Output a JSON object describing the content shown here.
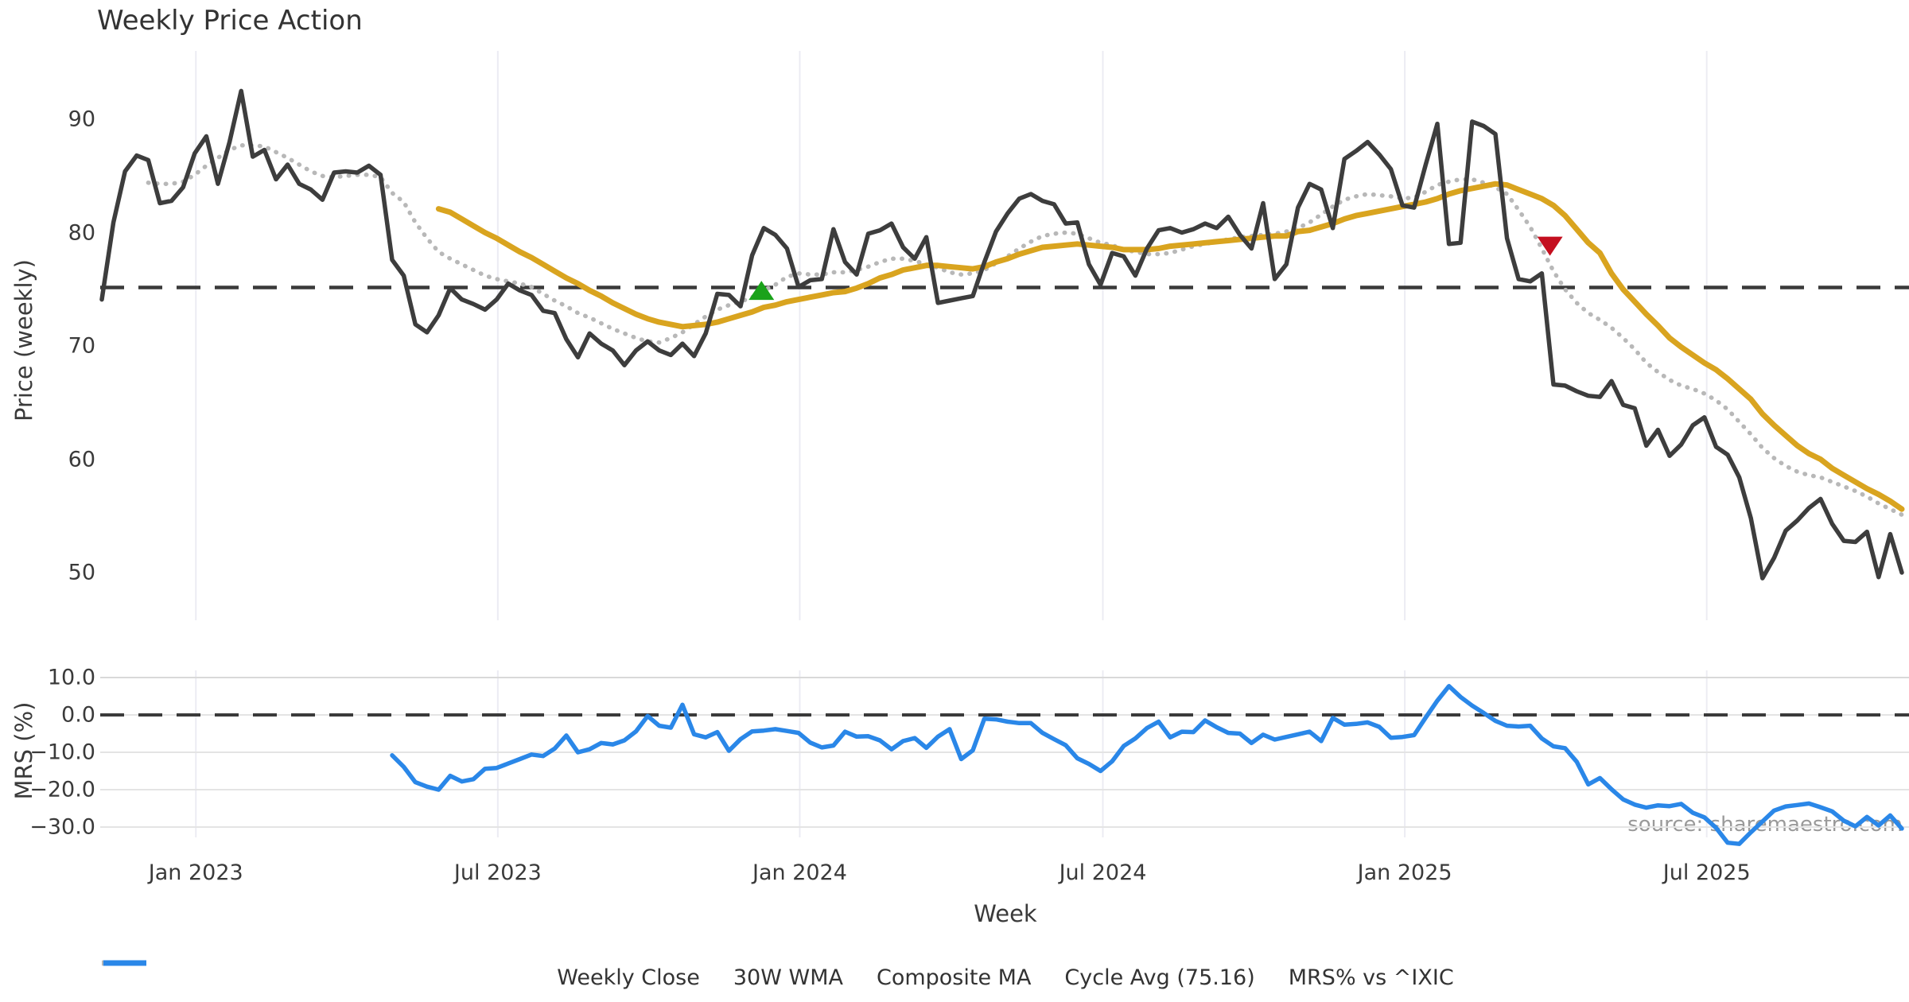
{
  "title": "Weekly Price Action",
  "source_note": "source: sharemaestro.com",
  "axes": {
    "price_label": "Price (weekly)",
    "mrs_label": "MRS (%)",
    "week_label": "Week"
  },
  "colors": {
    "close": "#3d3d3d",
    "wma": "#d9a41f",
    "composite": "#b8b8b8",
    "cycle_dash": "#3a3a3a",
    "mrs": "#2a87e8",
    "buy_marker": "#1aa21a",
    "sell_marker": "#c40f1f",
    "grid_vertical": "#ececf3",
    "grid_horizontal": "#e4e4e4",
    "text": "#3a3a3a",
    "muted_text": "#9a9a9a"
  },
  "legend": [
    {
      "label": "Weekly Close",
      "color": "#3d3d3d",
      "dash": "none"
    },
    {
      "label": "30W WMA",
      "color": "#d9a41f",
      "dash": "none"
    },
    {
      "label": "Composite MA",
      "color": "#b8b8b8",
      "dash": "dotted"
    },
    {
      "label": "Cycle Avg (75.16)",
      "color": "#3a3a3a",
      "dash": "dashed"
    },
    {
      "label": "MRS% vs ^IXIC",
      "color": "#2a87e8",
      "dash": "none"
    }
  ],
  "chart_data": [
    {
      "type": "line",
      "panel": "price",
      "title": "Weekly Price Action",
      "ylabel": "Price (weekly)",
      "xlabel": "Week",
      "ylim": [
        46,
        96.5
      ],
      "grid": "vertical-only",
      "yticks": [
        {
          "value": 90,
          "label": "90"
        },
        {
          "value": 80,
          "label": "80"
        },
        {
          "value": 70,
          "label": "70"
        },
        {
          "value": 60,
          "label": "60"
        },
        {
          "value": 50,
          "label": "50"
        }
      ],
      "x_ticks": [
        {
          "week": 8.1,
          "label": "Jan 2023"
        },
        {
          "week": 34.1,
          "label": "Jul 2023"
        },
        {
          "week": 60.1,
          "label": "Jan 2024"
        },
        {
          "week": 86.2,
          "label": "Jul 2024"
        },
        {
          "week": 112.2,
          "label": "Jan 2025"
        },
        {
          "week": 138.2,
          "label": "Jul 2025"
        }
      ],
      "cycle_avg": 75.16,
      "series": [
        {
          "name": "Weekly Close",
          "start_week": 0,
          "values": [
            74.1,
            80.9,
            85.4,
            86.8,
            86.4,
            82.6,
            82.8,
            84.0,
            87.0,
            88.5,
            84.3,
            88.0,
            92.5,
            86.7,
            87.3,
            84.7,
            86.0,
            84.3,
            83.8,
            82.9,
            85.3,
            85.4,
            85.3,
            85.9,
            85.1,
            77.6,
            76.2,
            71.9,
            71.2,
            72.7,
            75.1,
            74.1,
            73.7,
            73.2,
            74.1,
            75.5,
            74.9,
            74.5,
            73.1,
            72.9,
            70.6,
            69.0,
            71.1,
            70.2,
            69.6,
            68.3,
            69.6,
            70.4,
            69.6,
            69.2,
            70.2,
            69.1,
            71.1,
            74.6,
            74.5,
            73.5,
            78.0,
            80.4,
            79.8,
            78.6,
            75.2,
            75.8,
            75.9,
            80.3,
            77.4,
            76.3,
            79.9,
            80.2,
            80.8,
            78.7,
            77.7,
            79.6,
            73.8,
            74.0,
            74.2,
            74.4,
            77.4,
            80.1,
            81.7,
            83.0,
            83.4,
            82.8,
            82.5,
            80.8,
            80.9,
            77.2,
            75.4,
            78.2,
            77.9,
            76.2,
            78.6,
            80.2,
            80.4,
            80.0,
            80.3,
            80.8,
            80.4,
            81.4,
            79.8,
            78.6,
            82.6,
            75.9,
            77.2,
            82.2,
            84.3,
            83.8,
            80.4,
            86.5,
            87.2,
            88.0,
            86.9,
            85.6,
            82.4,
            82.2,
            86.0,
            89.6,
            79.0,
            79.1,
            89.8,
            89.4,
            88.7,
            79.5,
            75.9,
            75.7,
            76.4,
            66.6,
            66.5,
            66.0,
            65.6,
            65.5,
            66.9,
            64.8,
            64.5,
            61.2,
            62.6,
            60.3,
            61.3,
            63.0,
            63.7,
            61.1,
            60.4,
            58.4,
            54.8,
            49.5,
            51.3,
            53.7,
            54.6,
            55.7,
            56.5,
            54.3,
            52.8,
            52.7,
            53.6,
            49.6,
            53.4,
            50.0
          ]
        },
        {
          "name": "30W WMA",
          "start_week": 29,
          "values": [
            82.1,
            81.8,
            81.2,
            80.6,
            80.0,
            79.5,
            78.9,
            78.3,
            77.8,
            77.2,
            76.6,
            76.0,
            75.5,
            74.9,
            74.4,
            73.8,
            73.3,
            72.8,
            72.4,
            72.1,
            71.9,
            71.7,
            71.8,
            71.9,
            72.1,
            72.4,
            72.7,
            73.0,
            73.4,
            73.6,
            73.9,
            74.1,
            74.3,
            74.5,
            74.7,
            74.8,
            75.1,
            75.5,
            76.0,
            76.3,
            76.7,
            76.9,
            77.1,
            77.1,
            77.0,
            76.9,
            76.8,
            77.0,
            77.4,
            77.7,
            78.1,
            78.4,
            78.7,
            78.8,
            78.9,
            79.0,
            78.9,
            78.8,
            78.7,
            78.5,
            78.5,
            78.5,
            78.6,
            78.8,
            78.9,
            79.0,
            79.1,
            79.2,
            79.3,
            79.4,
            79.5,
            79.6,
            79.7,
            79.7,
            80.1,
            80.2,
            80.5,
            80.8,
            81.2,
            81.5,
            81.7,
            81.9,
            82.1,
            82.3,
            82.5,
            82.7,
            83.0,
            83.4,
            83.7,
            83.9,
            84.1,
            84.3,
            84.2,
            83.8,
            83.4,
            83.0,
            82.4,
            81.5,
            80.3,
            79.1,
            78.2,
            76.4,
            75.0,
            73.9,
            72.8,
            71.8,
            70.7,
            69.9,
            69.2,
            68.5,
            67.9,
            67.1,
            66.2,
            65.3,
            64.0,
            63.0,
            62.1,
            61.2,
            60.5,
            60.0,
            59.2,
            58.6,
            58.0,
            57.4,
            56.9,
            56.3,
            55.6
          ]
        },
        {
          "name": "Composite MA",
          "start_week": 4,
          "values": [
            84.4,
            84.3,
            84.3,
            84.5,
            85.1,
            85.9,
            86.6,
            87.3,
            87.7,
            87.7,
            87.6,
            87.1,
            86.6,
            86.0,
            85.4,
            85.0,
            84.9,
            85.0,
            85.1,
            85.1,
            84.9,
            83.5,
            82.7,
            80.9,
            79.5,
            78.3,
            77.7,
            77.2,
            76.7,
            76.2,
            75.9,
            75.7,
            75.5,
            75.2,
            74.6,
            74.0,
            73.5,
            72.9,
            72.5,
            72.0,
            71.5,
            71.1,
            70.7,
            70.4,
            70.3,
            70.7,
            71.2,
            71.9,
            72.6,
            73.2,
            73.6,
            73.9,
            74.3,
            74.9,
            75.4,
            76.1,
            76.4,
            76.3,
            76.3,
            76.5,
            76.5,
            76.7,
            77.0,
            77.4,
            77.7,
            77.7,
            77.5,
            77.2,
            76.9,
            76.5,
            76.3,
            76.4,
            76.7,
            77.3,
            77.9,
            78.6,
            79.2,
            79.7,
            79.9,
            80.0,
            79.9,
            79.5,
            79.1,
            78.9,
            78.5,
            78.3,
            78.1,
            78.1,
            78.2,
            78.5,
            78.8,
            79.0,
            79.2,
            79.4,
            79.6,
            79.7,
            79.8,
            79.9,
            80.1,
            80.4,
            80.9,
            81.6,
            82.3,
            82.9,
            83.2,
            83.4,
            83.3,
            83.2,
            83.0,
            83.1,
            83.6,
            84.2,
            84.5,
            84.7,
            84.7,
            84.4,
            84.0,
            83.4,
            82.0,
            80.5,
            78.6,
            76.6,
            75.0,
            73.8,
            72.9,
            72.3,
            71.6,
            70.7,
            69.7,
            68.5,
            67.7,
            67.0,
            66.5,
            66.2,
            65.8,
            65.2,
            64.4,
            63.3,
            62.2,
            61.0,
            60.1,
            59.4,
            58.9,
            58.6,
            58.4,
            58.0,
            57.6,
            57.2,
            56.7,
            56.1,
            55.6,
            55.1
          ]
        }
      ],
      "markers": [
        {
          "kind": "up",
          "week": 56.8,
          "value": 74.9
        },
        {
          "kind": "down",
          "week": 124.7,
          "value": 78.8
        }
      ]
    },
    {
      "type": "line",
      "panel": "mrs",
      "ylabel": "MRS (%)",
      "grid": "both",
      "yticks": [
        {
          "value": 10,
          "label": "10.0"
        },
        {
          "value": 0,
          "label": "0.0"
        },
        {
          "value": -10,
          "label": "−10.0"
        },
        {
          "value": -20,
          "label": "−20.0"
        },
        {
          "value": -30,
          "label": "−30.0"
        }
      ],
      "zero_dashed_at": 0,
      "series": [
        {
          "name": "MRS% vs ^IXIC",
          "start_week": 25,
          "values": [
            -10.8,
            -13.9,
            -18.0,
            -19.2,
            -20.0,
            -16.3,
            -17.8,
            -17.2,
            -14.4,
            -14.2,
            -13.0,
            -11.8,
            -10.6,
            -11.0,
            -9.0,
            -5.5,
            -10.0,
            -9.2,
            -7.5,
            -7.9,
            -6.8,
            -4.4,
            -0.3,
            -2.9,
            -3.4,
            2.7,
            -5.2,
            -6.0,
            -4.6,
            -9.6,
            -6.5,
            -4.4,
            -4.2,
            -3.8,
            -4.3,
            -4.8,
            -7.4,
            -8.7,
            -8.2,
            -4.5,
            -5.8,
            -5.7,
            -6.8,
            -9.2,
            -7.0,
            -6.2,
            -8.8,
            -5.8,
            -3.8,
            -11.8,
            -9.5,
            -1.0,
            -1.2,
            -1.8,
            -2.2,
            -2.2,
            -4.8,
            -6.5,
            -8.1,
            -11.6,
            -13.1,
            -15.0,
            -12.4,
            -8.3,
            -6.3,
            -3.5,
            -1.8,
            -6.0,
            -4.5,
            -4.6,
            -1.5,
            -3.3,
            -4.8,
            -5.0,
            -7.5,
            -5.3,
            -6.6,
            -5.9,
            -5.2,
            -4.5,
            -7.0,
            -0.8,
            -2.6,
            -2.4,
            -2.0,
            -3.2,
            -6.1,
            -5.9,
            -5.4,
            -0.7,
            3.8,
            7.7,
            4.8,
            2.5,
            0.5,
            -1.6,
            -2.9,
            -3.1,
            -2.9,
            -6.3,
            -8.4,
            -8.9,
            -12.5,
            -18.6,
            -16.9,
            -19.9,
            -22.6,
            -24.0,
            -24.8,
            -24.2,
            -24.4,
            -23.8,
            -26.2,
            -27.4,
            -30.2,
            -34.2,
            -34.5,
            -31.4,
            -28.5,
            -25.6,
            -24.5,
            -24.1,
            -23.7,
            -24.7,
            -25.8,
            -28.3,
            -29.8,
            -27.3,
            -29.6,
            -26.9,
            -30.4
          ]
        }
      ]
    }
  ]
}
